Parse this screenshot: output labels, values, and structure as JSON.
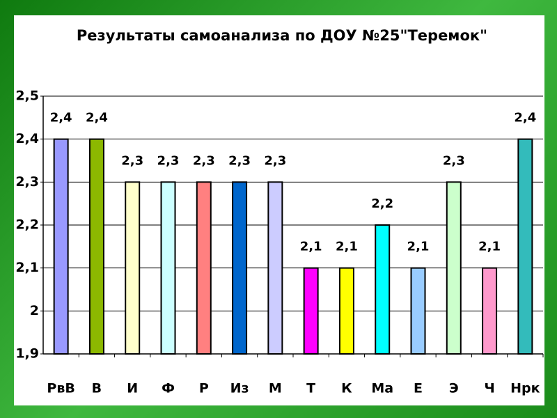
{
  "chart_data": {
    "type": "bar",
    "title": "Результаты самоанализа по ДОУ №25\"Теремок\"",
    "categories": [
      "РвВ",
      "В",
      "И",
      "Ф",
      "Р",
      "Из",
      "М",
      "Т",
      "К",
      "Ма",
      "Е",
      "Э",
      "Ч",
      "Нрк"
    ],
    "values": [
      2.4,
      2.4,
      2.3,
      2.3,
      2.3,
      2.3,
      2.3,
      2.1,
      2.1,
      2.2,
      2.1,
      2.3,
      2.1,
      2.4
    ],
    "value_labels": [
      "2,4",
      "2,4",
      "2,3",
      "2,3",
      "2,3",
      "2,3",
      "2,3",
      "2,1",
      "2,1",
      "2,2",
      "2,1",
      "2,3",
      "2,1",
      "2,4"
    ],
    "colors": [
      "#9999ff",
      "#8cb800",
      "#ffffcc",
      "#ccffff",
      "#ff8080",
      "#0066cc",
      "#ccccff",
      "#ff00ff",
      "#ffff00",
      "#00ffff",
      "#99ccff",
      "#ccffcc",
      "#ff99cc",
      "#33bbbb"
    ],
    "ylim": [
      1.9,
      2.5
    ],
    "yticks": [
      {
        "value": 1.9,
        "label": "1,9"
      },
      2,
      {
        "value": 2.1,
        "label": "2,1"
      },
      {
        "value": 2.2,
        "label": "2,2"
      },
      {
        "value": 2.3,
        "label": "2,3"
      },
      {
        "value": 2.4,
        "label": "2,4"
      },
      {
        "value": 2.5,
        "label": "2,5"
      }
    ],
    "grid": true
  }
}
